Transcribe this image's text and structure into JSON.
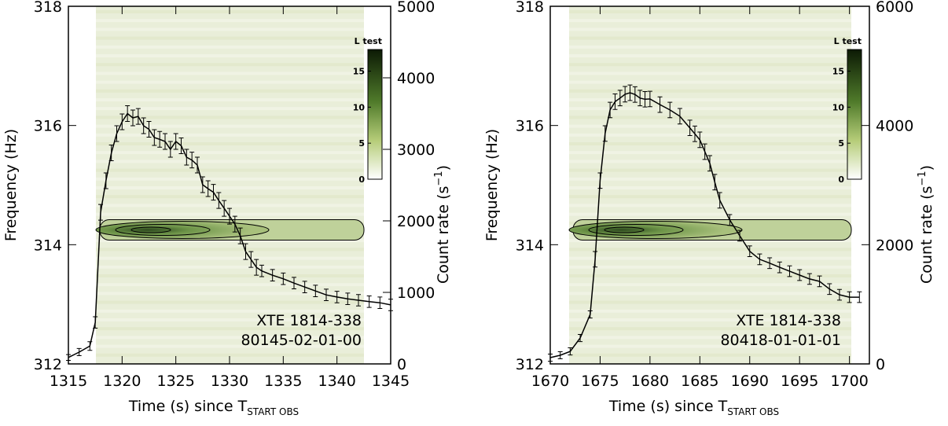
{
  "chart_data": [
    {
      "type": "line",
      "xlabel": "Time (s) since T",
      "xlabel_sub": "START OBS",
      "ylabel": "Frequency (Hz)",
      "y2label": "Count rate (s",
      "y2label_sup": "−1",
      "y2label_end": ")",
      "annotations": [
        "XTE 1814-338",
        "80145-02-01-00"
      ],
      "colorbar_label": "L test",
      "clim": [
        0,
        18
      ],
      "cticks": [
        0,
        5,
        10,
        15
      ],
      "xlim": [
        1315,
        1345
      ],
      "xticks": [
        1315,
        1320,
        1325,
        1330,
        1335,
        1340,
        1345
      ],
      "ylim": [
        312,
        318
      ],
      "yticks": [
        312,
        314,
        316,
        318
      ],
      "y2lim": [
        0,
        5000
      ],
      "y2ticks": [
        0,
        1000,
        2000,
        3000,
        4000,
        5000
      ],
      "x": [
        1315,
        1316,
        1317,
        1317.5,
        1318,
        1318.5,
        1319,
        1319.5,
        1320,
        1320.5,
        1321,
        1321.5,
        1322,
        1322.5,
        1323,
        1323.5,
        1324,
        1324.5,
        1325,
        1325.5,
        1326,
        1326.5,
        1327,
        1327.5,
        1328,
        1328.5,
        1329,
        1329.5,
        1330,
        1330.5,
        1331,
        1331.5,
        1332,
        1332.5,
        1333,
        1334,
        1335,
        1336,
        1337,
        1338,
        1339,
        1340,
        1341,
        1342,
        1343,
        1344,
        1345
      ],
      "series": [
        {
          "axis": "y2",
          "color": "#000000",
          "values": [
            90,
            165,
            250,
            580,
            2120,
            2560,
            2950,
            3220,
            3385,
            3500,
            3440,
            3460,
            3330,
            3280,
            3165,
            3140,
            3110,
            3000,
            3110,
            3050,
            2890,
            2850,
            2780,
            2505,
            2450,
            2400,
            2285,
            2175,
            2065,
            1955,
            1790,
            1570,
            1460,
            1350,
            1300,
            1240,
            1190,
            1130,
            1075,
            1020,
            965,
            935,
            910,
            890,
            870,
            855,
            825
          ],
          "errors": [
            40,
            50,
            60,
            80,
            110,
            110,
            110,
            110,
            110,
            110,
            110,
            110,
            110,
            110,
            110,
            110,
            110,
            110,
            110,
            110,
            110,
            110,
            110,
            110,
            110,
            110,
            110,
            110,
            110,
            110,
            110,
            110,
            110,
            110,
            80,
            80,
            80,
            80,
            80,
            80,
            80,
            80,
            80,
            80,
            80,
            80,
            80
          ]
        }
      ]
    },
    {
      "type": "line",
      "xlabel": "Time (s) since T",
      "xlabel_sub": "START OBS",
      "ylabel": "Frequency (Hz)",
      "y2label": "Count rate (s",
      "y2label_sup": "−1",
      "y2label_end": ")",
      "annotations": [
        "XTE 1814-338",
        "80418-01-01-01"
      ],
      "colorbar_label": "L test",
      "clim": [
        0,
        18
      ],
      "cticks": [
        0,
        5,
        10,
        15
      ],
      "xlim": [
        1670,
        1702
      ],
      "xticks": [
        1670,
        1675,
        1680,
        1685,
        1690,
        1695,
        1700
      ],
      "ylim": [
        312,
        318
      ],
      "yticks": [
        312,
        314,
        316,
        318
      ],
      "y2lim": [
        0,
        6000
      ],
      "y2ticks": [
        0,
        2000,
        4000,
        6000
      ],
      "x": [
        1670,
        1671,
        1672,
        1673,
        1674,
        1674.5,
        1675,
        1675.5,
        1676,
        1676.5,
        1677,
        1677.5,
        1678,
        1678.5,
        1679,
        1679.5,
        1680,
        1681,
        1682,
        1683,
        1684,
        1684.5,
        1685,
        1685.5,
        1686,
        1686.5,
        1687,
        1688,
        1689,
        1690,
        1691,
        1692,
        1693,
        1694,
        1695,
        1696,
        1697,
        1698,
        1699,
        1700,
        1701
      ],
      "series": [
        {
          "axis": "y2",
          "color": "#000000",
          "values": [
            105,
            145,
            210,
            435,
            830,
            1755,
            3075,
            3865,
            4260,
            4400,
            4460,
            4525,
            4550,
            4520,
            4460,
            4440,
            4445,
            4350,
            4260,
            4155,
            3960,
            3860,
            3760,
            3560,
            3365,
            3050,
            2745,
            2415,
            2150,
            1890,
            1755,
            1690,
            1620,
            1555,
            1490,
            1425,
            1385,
            1255,
            1160,
            1120,
            1120
          ],
          "errors": [
            60,
            60,
            60,
            60,
            60,
            130,
            130,
            130,
            130,
            130,
            130,
            130,
            130,
            130,
            130,
            130,
            130,
            130,
            130,
            130,
            130,
            130,
            130,
            130,
            130,
            130,
            130,
            90,
            90,
            90,
            90,
            90,
            90,
            90,
            90,
            90,
            90,
            90,
            90,
            90,
            90
          ]
        }
      ]
    }
  ]
}
